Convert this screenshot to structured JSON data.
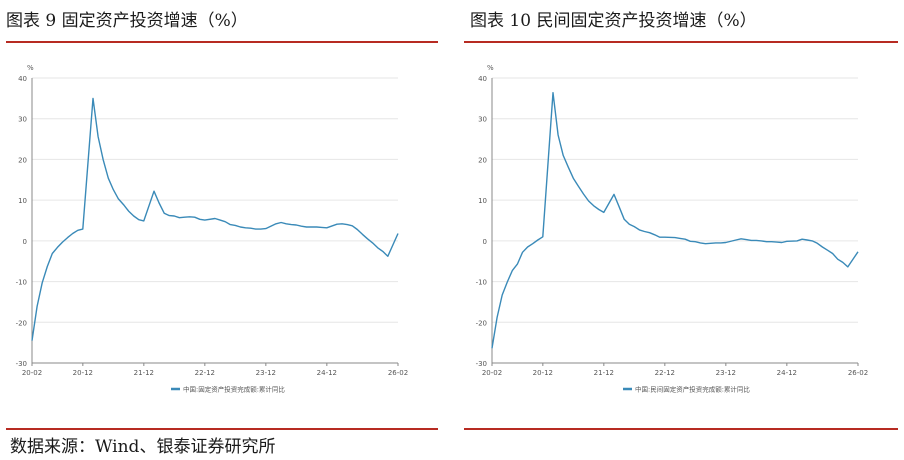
{
  "titles": [
    "图表 9  固定资产投资增速（%）",
    "图表 10  民间固定资产投资增速（%）"
  ],
  "source": "数据来源：Wind、银泰证券研究所",
  "colors": {
    "line": "#3a8ab8",
    "rule": "#b72b22",
    "axis": "#888888",
    "grid": "#e6e6e6",
    "text": "#555555"
  },
  "chart_data": [
    {
      "type": "line",
      "ylabel": "%",
      "ylim": [
        -30,
        40
      ],
      "yticks": [
        40,
        30,
        20,
        10,
        0,
        -10,
        -20,
        -30
      ],
      "xlim": [
        "2020-02",
        "2026-02"
      ],
      "xticks": [
        "20-02",
        "20-12",
        "21-12",
        "22-12",
        "23-12",
        "24-12",
        "26-02"
      ],
      "grid": true,
      "legend_position": "bottom",
      "series": [
        {
          "name": "中国:固定资产投资完成额:累计同比",
          "x": [
            "2020-02",
            "2020-03",
            "2020-04",
            "2020-05",
            "2020-06",
            "2020-07",
            "2020-08",
            "2020-09",
            "2020-10",
            "2020-11",
            "2020-12",
            "2021-02",
            "2021-03",
            "2021-04",
            "2021-05",
            "2021-06",
            "2021-07",
            "2021-08",
            "2021-09",
            "2021-10",
            "2021-11",
            "2021-12",
            "2022-02",
            "2022-03",
            "2022-04",
            "2022-05",
            "2022-06",
            "2022-07",
            "2022-08",
            "2022-09",
            "2022-10",
            "2022-11",
            "2022-12",
            "2023-02",
            "2023-03",
            "2023-04",
            "2023-05",
            "2023-06",
            "2023-07",
            "2023-08",
            "2023-09",
            "2023-10",
            "2023-11",
            "2023-12",
            "2024-02",
            "2024-03",
            "2024-04",
            "2024-05",
            "2024-06",
            "2024-07",
            "2024-08",
            "2024-09",
            "2024-10",
            "2024-11",
            "2024-12",
            "2025-02",
            "2025-03",
            "2025-04",
            "2025-05",
            "2025-06",
            "2025-07",
            "2025-08",
            "2025-09",
            "2025-10",
            "2025-11",
            "2025-12",
            "2026-02"
          ],
          "y": [
            -24.5,
            -16.1,
            -10.3,
            -6.3,
            -3.1,
            -1.6,
            -0.3,
            0.8,
            1.8,
            2.6,
            2.9,
            35.0,
            25.6,
            19.9,
            15.4,
            12.6,
            10.3,
            8.9,
            7.3,
            6.1,
            5.2,
            4.9,
            12.2,
            9.3,
            6.8,
            6.2,
            6.1,
            5.7,
            5.8,
            5.9,
            5.8,
            5.3,
            5.1,
            5.5,
            5.1,
            4.7,
            4.0,
            3.8,
            3.4,
            3.2,
            3.1,
            2.9,
            2.9,
            3.0,
            4.2,
            4.5,
            4.2,
            4.0,
            3.9,
            3.6,
            3.4,
            3.4,
            3.4,
            3.3,
            3.2,
            4.1,
            4.2,
            4.0,
            3.7,
            2.8,
            1.6,
            0.5,
            -0.5,
            -1.7,
            -2.6,
            -3.8,
            1.8
          ]
        }
      ]
    },
    {
      "type": "line",
      "ylabel": "%",
      "ylim": [
        -30,
        40
      ],
      "yticks": [
        40,
        30,
        20,
        10,
        0,
        -10,
        -20,
        -30
      ],
      "xlim": [
        "2020-02",
        "2026-02"
      ],
      "xticks": [
        "20-02",
        "20-12",
        "21-12",
        "22-12",
        "23-12",
        "24-12",
        "26-02"
      ],
      "grid": true,
      "legend_position": "bottom",
      "series": [
        {
          "name": "中国:民间固定资产投资完成额:累计同比",
          "x": [
            "2020-02",
            "2020-03",
            "2020-04",
            "2020-05",
            "2020-06",
            "2020-07",
            "2020-08",
            "2020-09",
            "2020-10",
            "2020-11",
            "2020-12",
            "2021-02",
            "2021-03",
            "2021-04",
            "2021-05",
            "2021-06",
            "2021-07",
            "2021-08",
            "2021-09",
            "2021-10",
            "2021-11",
            "2021-12",
            "2022-02",
            "2022-03",
            "2022-04",
            "2022-05",
            "2022-06",
            "2022-07",
            "2022-08",
            "2022-09",
            "2022-10",
            "2022-11",
            "2022-12",
            "2023-02",
            "2023-03",
            "2023-04",
            "2023-05",
            "2023-06",
            "2023-07",
            "2023-08",
            "2023-09",
            "2023-10",
            "2023-11",
            "2023-12",
            "2024-02",
            "2024-03",
            "2024-04",
            "2024-05",
            "2024-06",
            "2024-07",
            "2024-08",
            "2024-09",
            "2024-10",
            "2024-11",
            "2024-12",
            "2025-02",
            "2025-03",
            "2025-04",
            "2025-05",
            "2025-06",
            "2025-07",
            "2025-08",
            "2025-09",
            "2025-10",
            "2025-11",
            "2025-12",
            "2026-02"
          ],
          "y": [
            -26.4,
            -18.8,
            -13.3,
            -10.1,
            -7.3,
            -5.7,
            -2.8,
            -1.5,
            -0.7,
            0.2,
            1.0,
            36.4,
            26.0,
            21.0,
            18.1,
            15.4,
            13.4,
            11.5,
            9.8,
            8.6,
            7.7,
            7.0,
            11.4,
            8.4,
            5.3,
            4.1,
            3.5,
            2.7,
            2.3,
            2.0,
            1.5,
            0.9,
            0.9,
            0.8,
            0.6,
            0.4,
            -0.1,
            -0.2,
            -0.5,
            -0.7,
            -0.6,
            -0.5,
            -0.5,
            -0.4,
            0.2,
            0.5,
            0.3,
            0.1,
            0.1,
            0.0,
            -0.2,
            -0.2,
            -0.3,
            -0.4,
            -0.1,
            0.0,
            0.4,
            0.2,
            0.0,
            -0.6,
            -1.5,
            -2.3,
            -3.1,
            -4.5,
            -5.3,
            -6.4,
            -2.7
          ]
        }
      ]
    }
  ]
}
